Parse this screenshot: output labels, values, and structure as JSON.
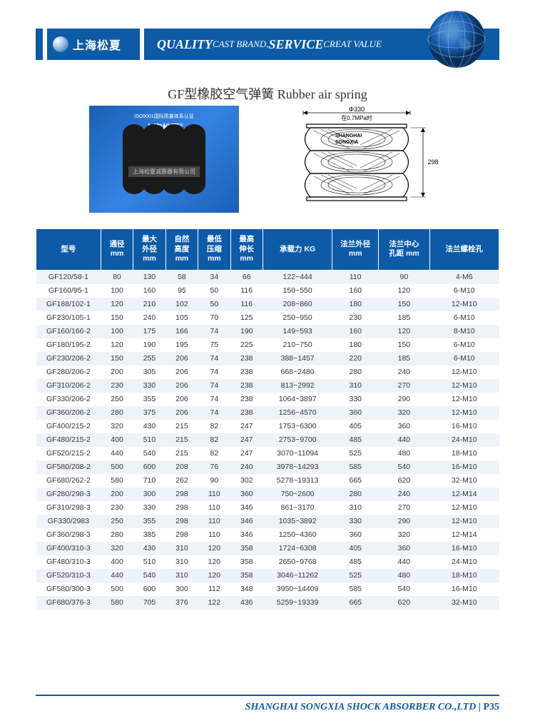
{
  "header": {
    "logo_text": "上海松夏",
    "slogan_q": "QUALITY",
    "slogan_mid1": " CAST BRAND,",
    "slogan_s": "SERVICE",
    "slogan_mid2": "  CREAT VALUE"
  },
  "title": "GF型橡胶空气弹簧 Rubber air spring",
  "photo": {
    "top_text": "ISO9001国际质量体系认证",
    "brand_cn": "上海松夏",
    "brand_en": "SHANGHAI SONGXIA",
    "watermark": "上海松夏减震器有限公司"
  },
  "diagram": {
    "dia_label": "Φ330",
    "pressure_label": "在0.7MPa时",
    "brand1": "SHANGHAI",
    "brand2": "SONGXIA",
    "height_label": "298"
  },
  "columns": [
    "型号",
    "通径\nmm",
    "最大\n外径\nmm",
    "自然\n高度\nmm",
    "最低\n压缩\nmm",
    "最高\n伸长\nmm",
    "承载力 KG",
    "法兰外径\nmm",
    "法兰中心\n孔距 mm",
    "法兰螺栓孔"
  ],
  "rows": [
    [
      "GF120/58-1",
      "80",
      "130",
      "58",
      "34",
      "66",
      "122~444",
      "110",
      "90",
      "4-M6"
    ],
    [
      "GF160/95-1",
      "100",
      "160",
      "95",
      "50",
      "116",
      "150~550",
      "160",
      "120",
      "6-M10"
    ],
    [
      "GF188/102-1",
      "120",
      "210",
      "102",
      "50",
      "116",
      "208~860",
      "180",
      "150",
      "12-M10"
    ],
    [
      "GF230/105-1",
      "150",
      "240",
      "105",
      "70",
      "125",
      "250~950",
      "230",
      "185",
      "6-M10"
    ],
    [
      "GF160/166-2",
      "100",
      "175",
      "166",
      "74",
      "190",
      "149~593",
      "160",
      "120",
      "8-M10"
    ],
    [
      "GF180/195-2",
      "120",
      "190",
      "195",
      "75",
      "225",
      "210~750",
      "180",
      "150",
      "6-M10"
    ],
    [
      "GF230/206-2",
      "150",
      "255",
      "206",
      "74",
      "238",
      "388~1457",
      "220",
      "185",
      "6-M10"
    ],
    [
      "GF280/206-2",
      "200",
      "305",
      "206",
      "74",
      "238",
      "668~2480",
      "280",
      "240",
      "12-M10"
    ],
    [
      "GF310/206-2",
      "230",
      "330",
      "206",
      "74",
      "238",
      "813~2992",
      "310",
      "270",
      "12-M10"
    ],
    [
      "GF330/206-2",
      "250",
      "355",
      "206",
      "74",
      "238",
      "1064~3897",
      "330",
      "290",
      "12-M10"
    ],
    [
      "GF360/206-2",
      "280",
      "375",
      "206",
      "74",
      "238",
      "1256~4570",
      "360",
      "320",
      "12-M10"
    ],
    [
      "GF400/215-2",
      "320",
      "430",
      "215",
      "82",
      "247",
      "1753~6300",
      "405",
      "360",
      "16-M10"
    ],
    [
      "GF480/215-2",
      "400",
      "510",
      "215",
      "82",
      "247",
      "2753~9700",
      "485",
      "440",
      "24-M10"
    ],
    [
      "GF520/215-2",
      "440",
      "540",
      "215",
      "82",
      "247",
      "3070~11094",
      "525",
      "480",
      "18-M10"
    ],
    [
      "GF580/208-2",
      "500",
      "600",
      "208",
      "76",
      "240",
      "3978~14293",
      "585",
      "540",
      "16-M10"
    ],
    [
      "GF680/262-2",
      "580",
      "710",
      "262",
      "90",
      "302",
      "5278~19313",
      "665",
      "620",
      "32-M10"
    ],
    [
      "GF280/298-3",
      "200",
      "300",
      "298",
      "110",
      "360",
      "750~2600",
      "280",
      "240",
      "12-M14"
    ],
    [
      "GF310/298-3",
      "230",
      "330",
      "298",
      "110",
      "346",
      "861~3170",
      "310",
      "270",
      "12-M10"
    ],
    [
      "GF330/2983",
      "250",
      "355",
      "298",
      "110",
      "346",
      "1035~3892",
      "330",
      "290",
      "12-M10"
    ],
    [
      "GF360/298-3",
      "280",
      "385",
      "298",
      "110",
      "346",
      "1250~4360",
      "360",
      "320",
      "12-M14"
    ],
    [
      "GF400/310-3",
      "320",
      "430",
      "310",
      "120",
      "358",
      "1724~6308",
      "405",
      "360",
      "16-M10"
    ],
    [
      "GF480/310-3",
      "400",
      "510",
      "310",
      "120",
      "358",
      "2650~9768",
      "485",
      "440",
      "24-M10"
    ],
    [
      "GF520/310-3",
      "440",
      "540",
      "310",
      "120",
      "358",
      "3046~11262",
      "525",
      "480",
      "18-M10"
    ],
    [
      "GF580/300-3",
      "500",
      "600",
      "300",
      "112",
      "348",
      "3950~14409",
      "585",
      "540",
      "16-M10"
    ],
    [
      "GF680/376-3",
      "580",
      "705",
      "376",
      "122",
      "436",
      "5259~19339",
      "665",
      "620",
      "32-M10"
    ]
  ],
  "col_widths_pct": [
    14,
    7,
    7,
    7,
    7,
    7,
    15,
    10,
    11,
    15
  ],
  "footer": {
    "company": "SHANGHAI SONGXIA SHOCK ABSORBER CO.,LTD",
    "page": "P35"
  },
  "colors": {
    "brand_blue": "#0d5aa7",
    "row_alt": "#eef3f9",
    "white": "#ffffff"
  }
}
